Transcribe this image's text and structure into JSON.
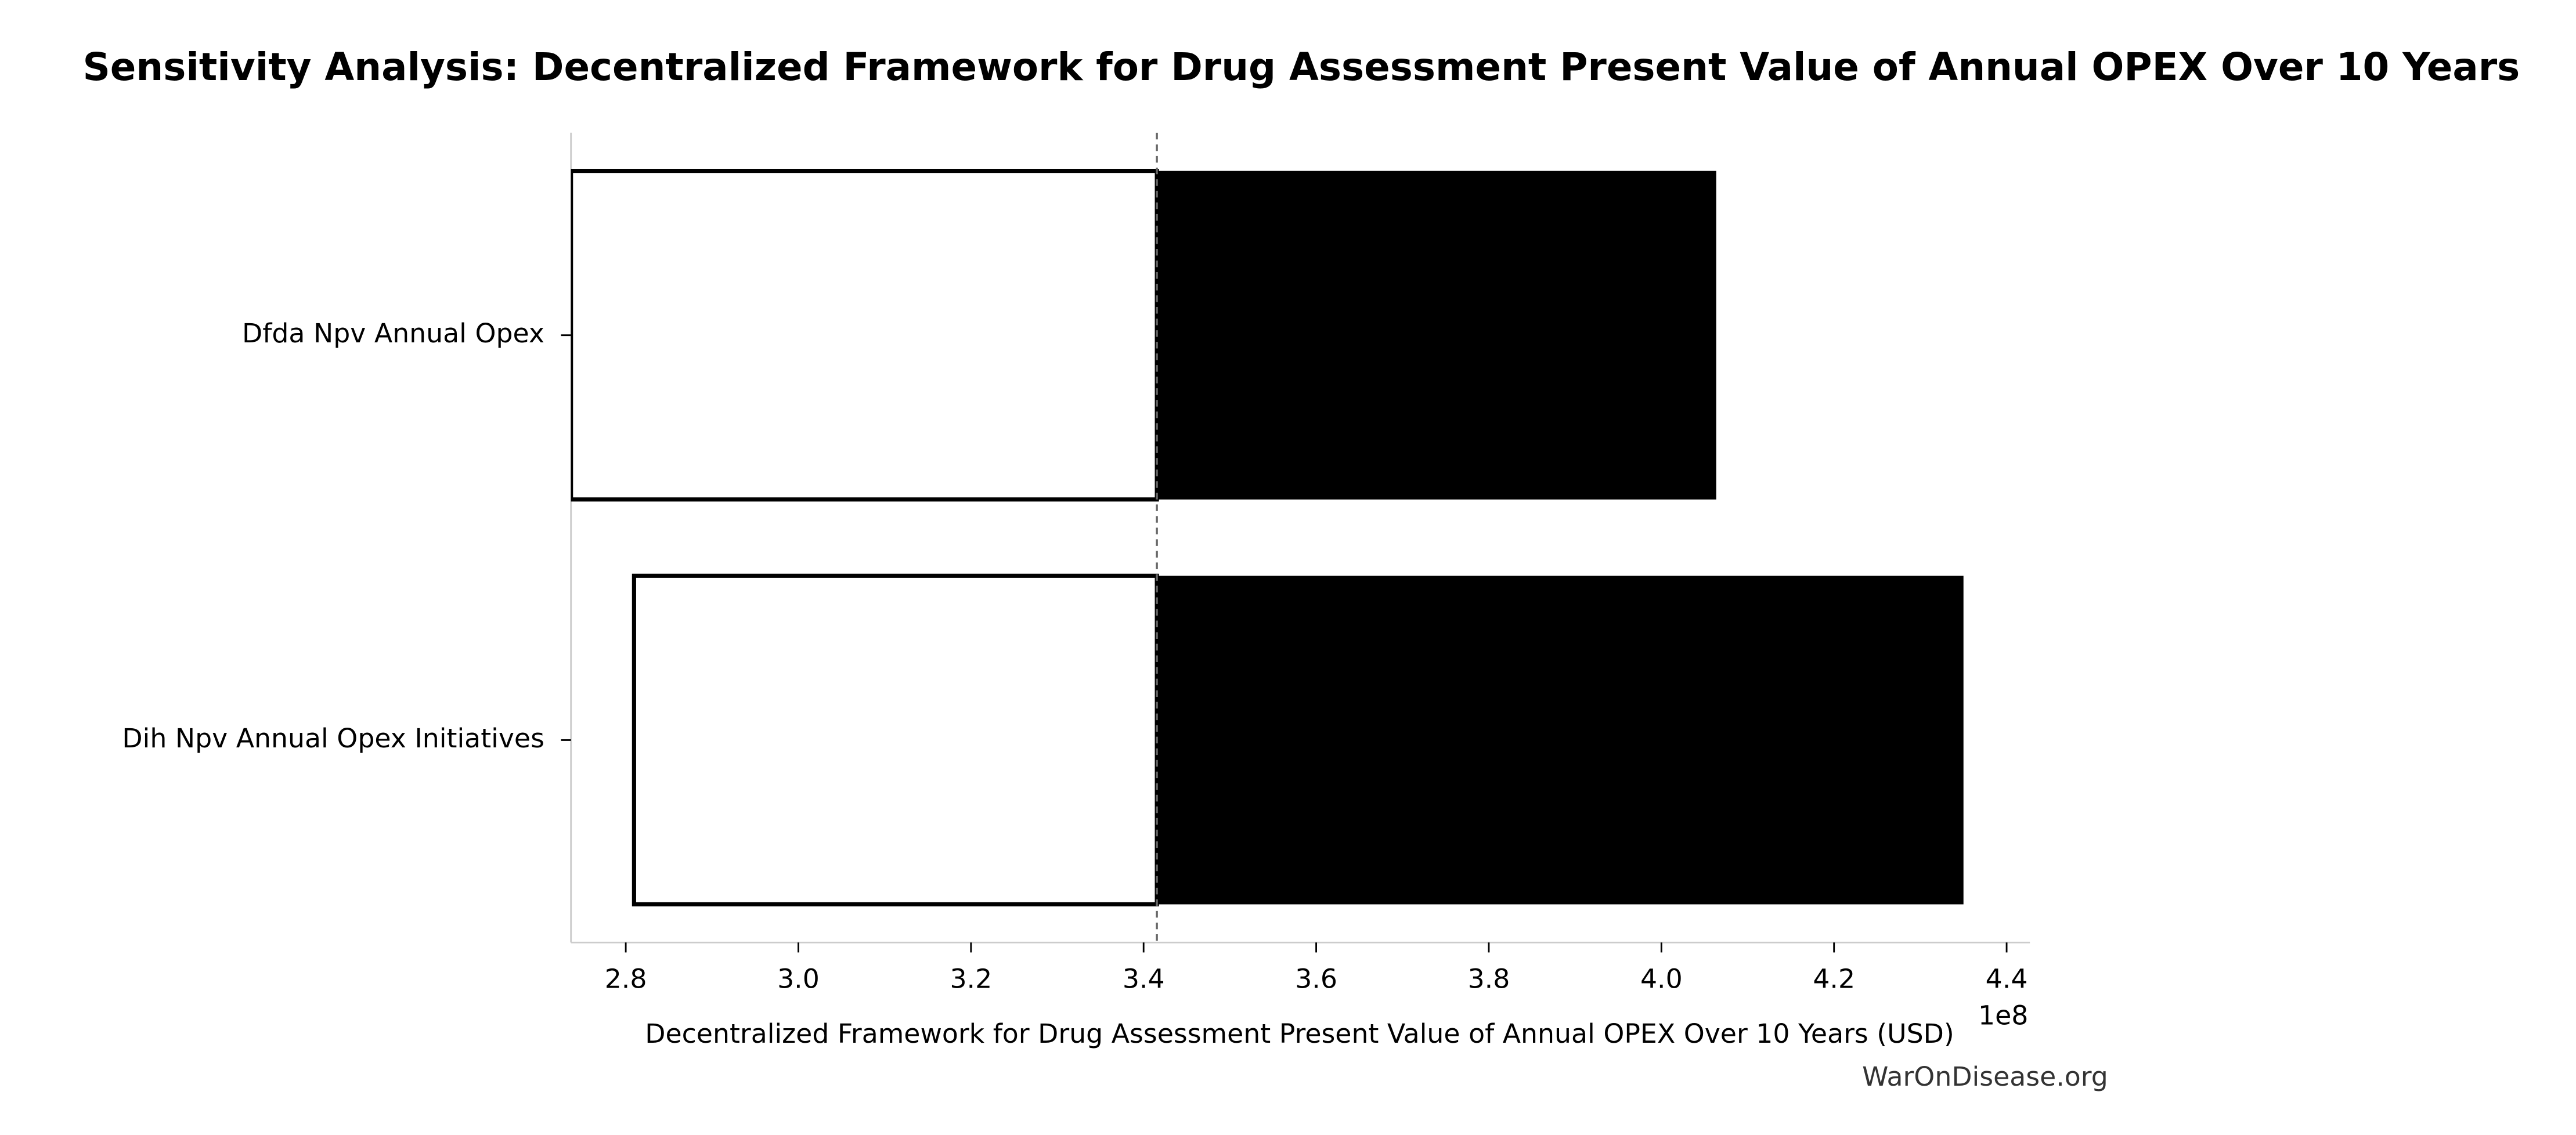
{
  "chart_data": {
    "type": "tornado",
    "title": "Sensitivity Analysis: Decentralized Framework for Drug Assessment Present Value of Annual OPEX Over 10 Years",
    "xlabel": "Decentralized Framework for Drug Assessment Present Value of Annual OPEX Over 10 Years (USD)",
    "x_offset_label": "1e8",
    "source": "WarOnDisease.org",
    "categories": [
      "Dfda Npv Annual Opex",
      "Dih Npv Annual Opex Initiatives"
    ],
    "baseline": 341540000,
    "low": [
      273650000,
      280960000
    ],
    "high": [
      406350000,
      435000000
    ],
    "low_color": "#ffffff",
    "high_color": "#000000",
    "xlim": [
      273650000,
      442700000
    ],
    "xticks": [
      {
        "value": 280000000,
        "label": "2.8"
      },
      {
        "value": 300000000,
        "label": "3.0"
      },
      {
        "value": 320000000,
        "label": "3.2"
      },
      {
        "value": 340000000,
        "label": "3.4"
      },
      {
        "value": 360000000,
        "label": "3.6"
      },
      {
        "value": 380000000,
        "label": "3.8"
      },
      {
        "value": 400000000,
        "label": "4.0"
      },
      {
        "value": 420000000,
        "label": "4.2"
      },
      {
        "value": 440000000,
        "label": "4.4"
      }
    ]
  }
}
